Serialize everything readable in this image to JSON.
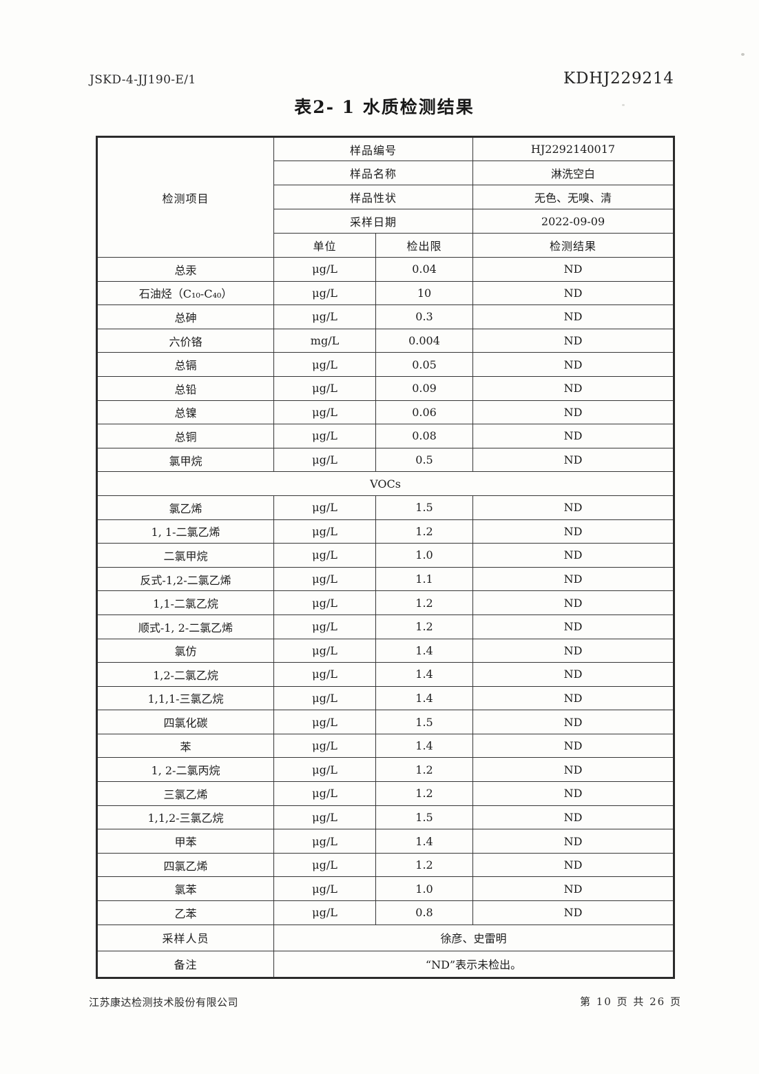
{
  "header": {
    "doc_code": "JSKD-4-JJ190-E/1",
    "report_no": "KDHJ229214",
    "title": "表2- 1 水质检测结果"
  },
  "table": {
    "item_column_header": "检测项目",
    "sample_info": [
      {
        "label": "样品编号",
        "value": "HJ2292140017"
      },
      {
        "label": "样品名称",
        "value": "淋洗空白"
      },
      {
        "label": "样品性状",
        "value": "无色、无嗅、清"
      },
      {
        "label": "采样日期",
        "value": "2022-09-09"
      }
    ],
    "column_headers": {
      "unit": "单位",
      "detection_limit": "检出限",
      "result": "检测结果"
    },
    "rows": [
      {
        "item": "总汞",
        "unit": "μg/L",
        "limit": "0.04",
        "result": "ND"
      },
      {
        "item": "石油烃（C₁₀-C₄₀）",
        "unit": "μg/L",
        "limit": "10",
        "result": "ND"
      },
      {
        "item": "总砷",
        "unit": "μg/L",
        "limit": "0.3",
        "result": "ND"
      },
      {
        "item": "六价铬",
        "unit": "mg/L",
        "limit": "0.004",
        "result": "ND"
      },
      {
        "item": "总镉",
        "unit": "μg/L",
        "limit": "0.05",
        "result": "ND"
      },
      {
        "item": "总铅",
        "unit": "μg/L",
        "limit": "0.09",
        "result": "ND"
      },
      {
        "item": "总镍",
        "unit": "μg/L",
        "limit": "0.06",
        "result": "ND"
      },
      {
        "item": "总铜",
        "unit": "μg/L",
        "limit": "0.08",
        "result": "ND"
      },
      {
        "item": "氯甲烷",
        "unit": "μg/L",
        "limit": "0.5",
        "result": "ND"
      },
      {
        "section": "VOCs"
      },
      {
        "item": "氯乙烯",
        "unit": "μg/L",
        "limit": "1.5",
        "result": "ND"
      },
      {
        "item": "1, 1-二氯乙烯",
        "unit": "μg/L",
        "limit": "1.2",
        "result": "ND"
      },
      {
        "item": "二氯甲烷",
        "unit": "μg/L",
        "limit": "1.0",
        "result": "ND"
      },
      {
        "item": "反式-1,2-二氯乙烯",
        "unit": "μg/L",
        "limit": "1.1",
        "result": "ND"
      },
      {
        "item": "1,1-二氯乙烷",
        "unit": "μg/L",
        "limit": "1.2",
        "result": "ND"
      },
      {
        "item": "顺式-1, 2-二氯乙烯",
        "unit": "μg/L",
        "limit": "1.2",
        "result": "ND"
      },
      {
        "item": "氯仿",
        "unit": "μg/L",
        "limit": "1.4",
        "result": "ND"
      },
      {
        "item": "1,2-二氯乙烷",
        "unit": "μg/L",
        "limit": "1.4",
        "result": "ND"
      },
      {
        "item": "1,1,1-三氯乙烷",
        "unit": "μg/L",
        "limit": "1.4",
        "result": "ND"
      },
      {
        "item": "四氯化碳",
        "unit": "μg/L",
        "limit": "1.5",
        "result": "ND"
      },
      {
        "item": "苯",
        "unit": "μg/L",
        "limit": "1.4",
        "result": "ND"
      },
      {
        "item": "1, 2-二氯丙烷",
        "unit": "μg/L",
        "limit": "1.2",
        "result": "ND"
      },
      {
        "item": "三氯乙烯",
        "unit": "μg/L",
        "limit": "1.2",
        "result": "ND"
      },
      {
        "item": "1,1,2-三氯乙烷",
        "unit": "μg/L",
        "limit": "1.5",
        "result": "ND"
      },
      {
        "item": "甲苯",
        "unit": "μg/L",
        "limit": "1.4",
        "result": "ND"
      },
      {
        "item": "四氯乙烯",
        "unit": "μg/L",
        "limit": "1.2",
        "result": "ND"
      },
      {
        "item": "氯苯",
        "unit": "μg/L",
        "limit": "1.0",
        "result": "ND"
      },
      {
        "item": "乙苯",
        "unit": "μg/L",
        "limit": "0.8",
        "result": "ND"
      }
    ],
    "footer_rows": [
      {
        "label": "采样人员",
        "value": "徐彦、史雷明"
      },
      {
        "label": "备注",
        "value": "“ND”表示未检出。"
      }
    ]
  },
  "footer": {
    "company": "江苏康达检测技术股份有限公司",
    "page_info": "第 10 页 共 26 页"
  }
}
